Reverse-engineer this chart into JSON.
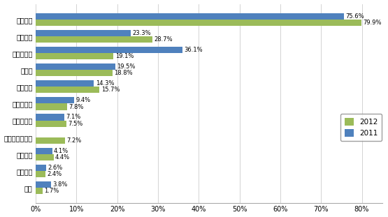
{
  "categories": [
    "产品质量",
    "供货能力",
    "产品性价比",
    "交货期",
    "技术支持",
    "技术领先性",
    "品牌知名度",
    "小批量供应服务",
    "产品组合",
    "付款条件",
    "信誉"
  ],
  "values_2012": [
    79.9,
    28.7,
    19.1,
    18.8,
    15.7,
    7.8,
    7.5,
    7.2,
    4.4,
    2.4,
    1.7
  ],
  "values_2011": [
    75.6,
    23.3,
    36.1,
    19.5,
    14.3,
    9.4,
    7.1,
    0,
    4.1,
    2.6,
    3.8
  ],
  "color_2012": "#9BBB59",
  "color_2011": "#4F81BD",
  "legend_2012": "2012",
  "legend_2011": "2011",
  "xlim": [
    0,
    85
  ],
  "xticks": [
    0,
    10,
    20,
    30,
    40,
    50,
    60,
    70,
    80
  ],
  "xtick_labels": [
    "0%",
    "10%",
    "20%",
    "30%",
    "40%",
    "50%",
    "60%",
    "70%",
    "80%"
  ],
  "bar_height": 0.38,
  "bg_color": "#FFFFFF",
  "label_fontsize": 6.0,
  "tick_fontsize": 7.0
}
